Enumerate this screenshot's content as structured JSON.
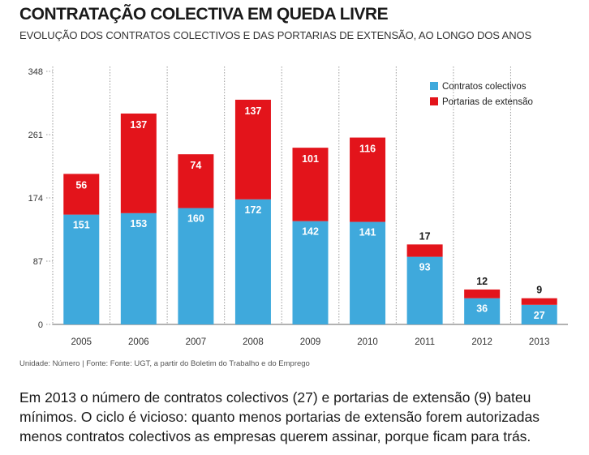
{
  "title": "CONTRATAÇÃO COLECTIVA EM QUEDA LIVRE",
  "subtitle": "EVOLUÇÃO DOS CONTRATOS COLECTIVOS E DAS PORTARIAS DE EXTENSÃO, AO LONGO DOS ANOS",
  "source": "Unidade: Número | Fonte: Fonte: UGT, a partir do Boletim do Trabalho e do Emprego",
  "caption": "Em 2013 o número de contratos colectivos (27) e portarias de extensão (9) bateu mínimos. O ciclo é vicioso: quanto menos portarias de extensão forem autorizadas menos contratos colectivos as empresas querem assinar, porque ficam para trás.",
  "chart_data": {
    "type": "bar",
    "stacked": true,
    "categories": [
      "2005",
      "2006",
      "2007",
      "2008",
      "2009",
      "2010",
      "2011",
      "2012",
      "2013"
    ],
    "series": [
      {
        "name": "Contratos colectivos",
        "color": "#3fa9dc",
        "values": [
          151,
          153,
          160,
          172,
          142,
          141,
          93,
          36,
          27
        ]
      },
      {
        "name": "Portarias de extensão",
        "color": "#e3141b",
        "values": [
          56,
          137,
          74,
          137,
          101,
          116,
          17,
          12,
          9
        ]
      }
    ],
    "yticks": [
      0,
      87,
      174,
      261,
      348
    ],
    "ylim": [
      0,
      348
    ],
    "grid": "vertical dotted",
    "legend": "top-right"
  }
}
